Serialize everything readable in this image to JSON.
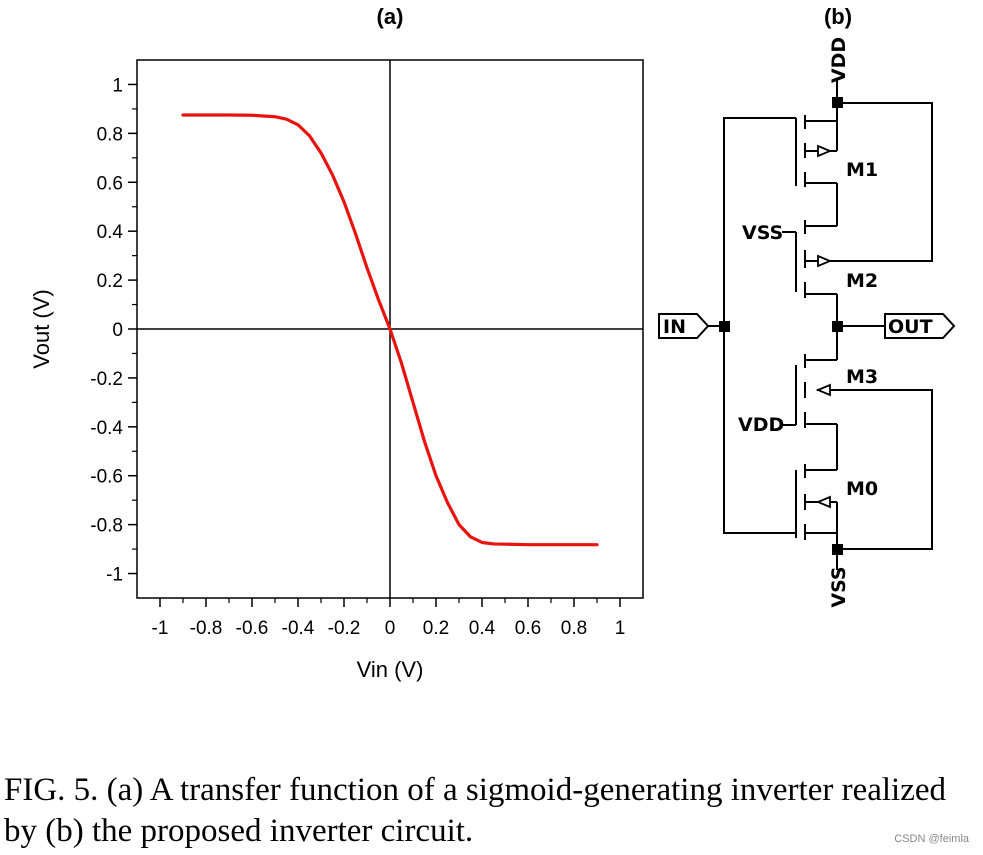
{
  "chart_data": {
    "type": "line",
    "panel_label": "(a)",
    "xlabel": "Vin (V)",
    "ylabel": "Vout (V)",
    "xlim": [
      -1.1,
      1.1
    ],
    "ylim": [
      -1.1,
      1.1
    ],
    "x_ticks": [
      -1,
      -0.8,
      -0.6,
      -0.4,
      -0.2,
      0,
      0.2,
      0.4,
      0.6,
      0.8,
      1
    ],
    "x_tick_labels": [
      "-1",
      "-0.8",
      "-0.6",
      "-0.4",
      "-0.2",
      "0",
      "0.2",
      "0.4",
      "0.6",
      "0.8",
      "1"
    ],
    "y_ticks": [
      1,
      0.8,
      0.6,
      0.4,
      0.2,
      0,
      -0.2,
      -0.4,
      -0.6,
      -0.8,
      -1
    ],
    "y_tick_labels": [
      "1",
      "0.8",
      "0.6",
      "0.4",
      "0.2",
      "0",
      "-0.2",
      "-0.4",
      "-0.6",
      "-0.8",
      "-1"
    ],
    "grid": false,
    "series": [
      {
        "name": "Vout",
        "color": "#e8130f",
        "x": [
          -0.9,
          -0.8,
          -0.7,
          -0.6,
          -0.5,
          -0.45,
          -0.4,
          -0.35,
          -0.3,
          -0.25,
          -0.2,
          -0.15,
          -0.1,
          -0.05,
          0,
          0.05,
          0.1,
          0.15,
          0.2,
          0.25,
          0.3,
          0.35,
          0.4,
          0.45,
          0.5,
          0.6,
          0.7,
          0.8,
          0.9
        ],
        "y": [
          0.875,
          0.875,
          0.875,
          0.874,
          0.868,
          0.858,
          0.835,
          0.79,
          0.72,
          0.63,
          0.52,
          0.39,
          0.25,
          0.12,
          0.0,
          -0.14,
          -0.3,
          -0.46,
          -0.6,
          -0.71,
          -0.8,
          -0.85,
          -0.873,
          -0.879,
          -0.88,
          -0.882,
          -0.882,
          -0.882,
          -0.882
        ]
      }
    ]
  },
  "circuit": {
    "panel_label": "(b)",
    "labels": {
      "vdd_top": "VDD",
      "vss_bottom": "VSS",
      "vss_mid": "VSS",
      "vdd_mid": "VDD",
      "m1": "M1",
      "m2": "M2",
      "m3": "M3",
      "m0": "M0",
      "in": "IN",
      "out": "OUT"
    }
  },
  "caption": "FIG. 5. (a) A transfer function of a sigmoid-generating inverter realized by (b) the proposed inverter circuit.",
  "watermark": "CSDN @feimla"
}
